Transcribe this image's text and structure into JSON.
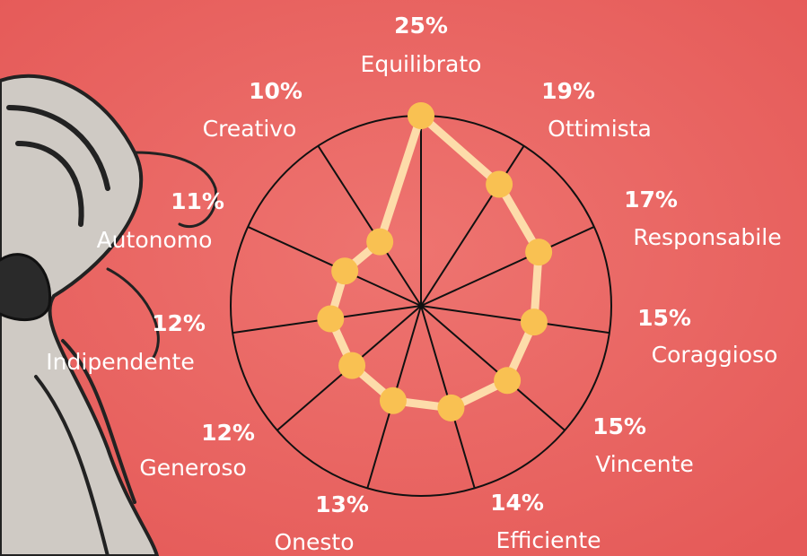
{
  "chart_data": {
    "type": "radar",
    "categories": [
      "Equilibrato",
      "Ottimista",
      "Responsabile",
      "Coraggioso",
      "Vincente",
      "Efficiente",
      "Onesto",
      "Generoso",
      "Indipendente",
      "Autonomo",
      "Creativo"
    ],
    "values": [
      25,
      19,
      17,
      15,
      15,
      14,
      13,
      12,
      12,
      11,
      10
    ],
    "value_labels": [
      "25%",
      "19%",
      "17%",
      "15%",
      "15%",
      "14%",
      "13%",
      "12%",
      "12%",
      "11%",
      "10%"
    ],
    "color": "#fddcaa",
    "marker_color": "#f9c152"
  }
}
